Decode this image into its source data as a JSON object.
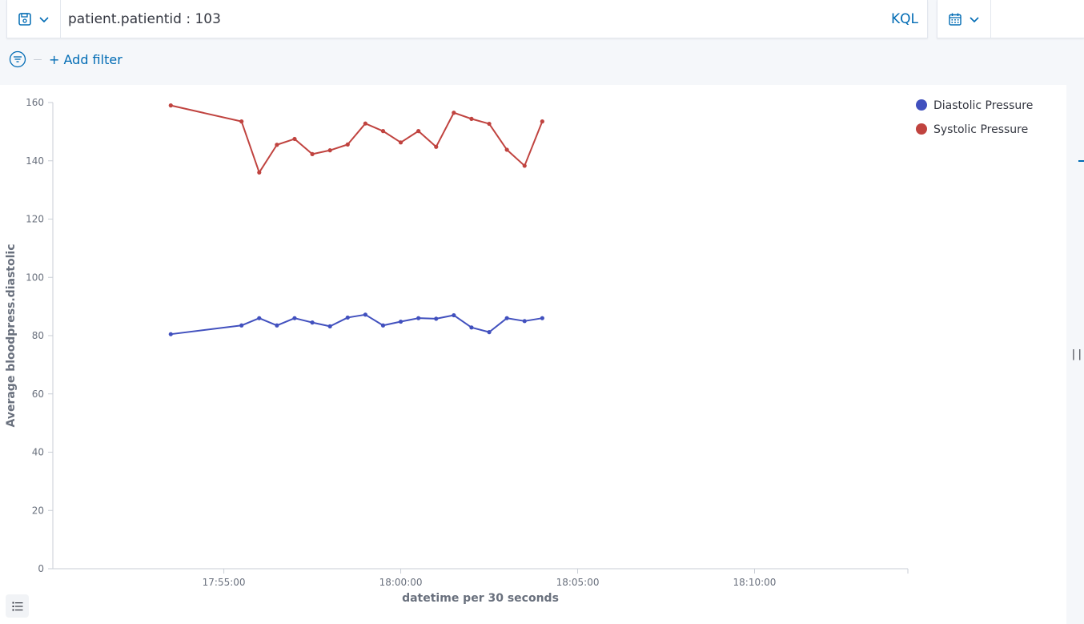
{
  "query": {
    "value": "patient.patientid : 103",
    "language_label": "KQL"
  },
  "filters": {
    "add_label": "+ Add filter"
  },
  "icons": {
    "saved_query": "save-icon",
    "calendar": "calendar-icon",
    "filter": "filter-icon",
    "legend": "list-icon"
  },
  "colors": {
    "accent": "#006bb4",
    "diastolic": "#4150be",
    "systolic": "#c0433f"
  },
  "chart_data": {
    "type": "line",
    "xlabel": "datetime per 30 seconds",
    "ylabel": "Average bloodpress.diastolic",
    "ylim": [
      0,
      160
    ],
    "yticks": [
      0,
      20,
      40,
      60,
      80,
      100,
      120,
      140,
      160
    ],
    "xlim": [
      "17:50:10",
      "18:14:20"
    ],
    "xticks": [
      "17:55:00",
      "18:00:00",
      "18:05:00",
      "18:10:00"
    ],
    "legend_position": "top-right",
    "x": [
      "17:53:30",
      "17:55:30",
      "17:56:00",
      "17:56:30",
      "17:57:00",
      "17:57:30",
      "17:58:00",
      "17:58:30",
      "17:59:00",
      "17:59:30",
      "18:00:00",
      "18:00:30",
      "18:01:00",
      "18:01:30",
      "18:02:00",
      "18:02:30",
      "18:03:00",
      "18:03:30",
      "18:04:00"
    ],
    "series": [
      {
        "name": "Diastolic Pressure",
        "color": "#4150be",
        "values": [
          80.5,
          83.5,
          86,
          83.5,
          86,
          84.5,
          83.2,
          86.2,
          87.2,
          83.5,
          84.8,
          86,
          85.8,
          87,
          82.8,
          81.2,
          86,
          85,
          86
        ]
      },
      {
        "name": "Systolic Pressure",
        "color": "#c0433f",
        "values": [
          159,
          153.5,
          136,
          145.5,
          147.5,
          142.3,
          143.6,
          145.6,
          152.8,
          150.2,
          146.3,
          150.2,
          144.8,
          156.5,
          154.4,
          152.7,
          143.8,
          138.3,
          153.5
        ]
      }
    ]
  }
}
